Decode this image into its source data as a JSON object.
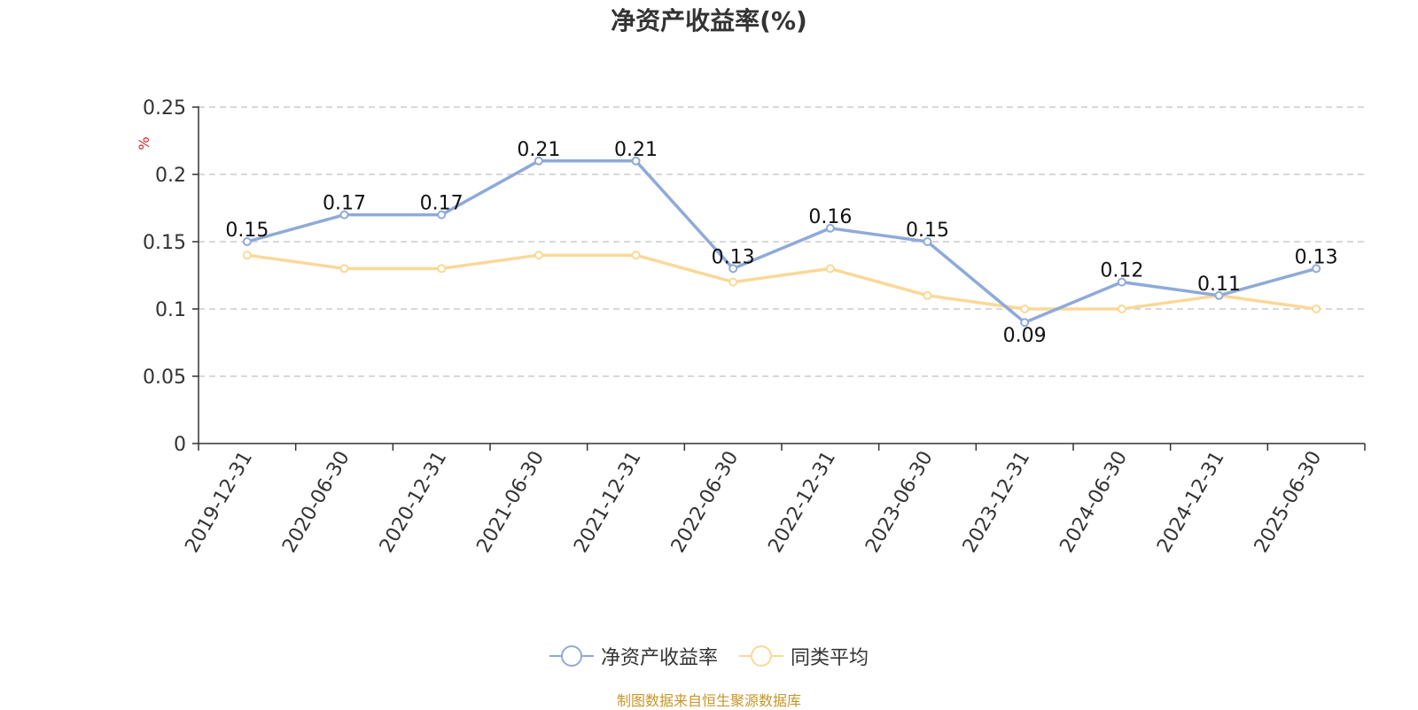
{
  "chart_data": {
    "type": "line",
    "title": "净资产收益率(%)",
    "ylabel": "%",
    "ylim": [
      0,
      0.25
    ],
    "yticks": [
      "0",
      "0.05",
      "0.1",
      "0.15",
      "0.2",
      "0.25"
    ],
    "grid": true,
    "legend_position": "bottom",
    "categories": [
      "2019-12-31",
      "2020-06-30",
      "2020-12-31",
      "2021-06-30",
      "2021-12-31",
      "2022-06-30",
      "2022-12-31",
      "2023-06-30",
      "2023-12-31",
      "2024-06-30",
      "2024-12-31",
      "2025-06-30"
    ],
    "series": [
      {
        "name": "净资产收益率",
        "color": "#8eaad8",
        "values": [
          0.15,
          0.17,
          0.17,
          0.21,
          0.21,
          0.13,
          0.16,
          0.15,
          0.09,
          0.12,
          0.11,
          0.13
        ],
        "labels": [
          "0.15",
          "0.17",
          "0.17",
          "0.21",
          "0.21",
          "0.13",
          "0.16",
          "0.15",
          "0.09",
          "0.12",
          "0.11",
          "0.13"
        ]
      },
      {
        "name": "同类平均",
        "color": "#fbd898",
        "values": [
          0.14,
          0.13,
          0.13,
          0.14,
          0.14,
          0.12,
          0.13,
          0.11,
          0.1,
          0.1,
          0.11,
          0.1
        ]
      }
    ]
  },
  "source": "制图数据来自恒生聚源数据库"
}
